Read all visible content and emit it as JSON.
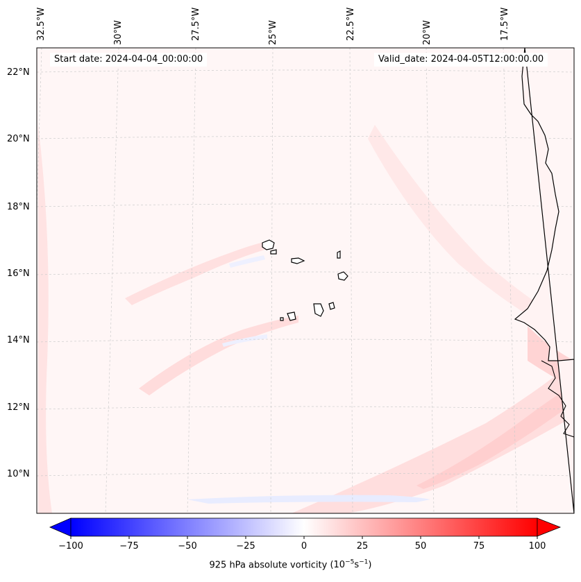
{
  "map": {
    "start_date": "Start date: 2024-04-04_00:00:00",
    "valid_date": "Valid_date: 2024-04-05T12:00:00.00",
    "lon_labels": [
      "32.5°W",
      "30°W",
      "27.5°W",
      "25°W",
      "22.5°W",
      "20°W",
      "17.5°W"
    ],
    "lat_labels": [
      "22°N",
      "20°N",
      "18°N",
      "16°N",
      "14°N",
      "12°N",
      "10°N"
    ],
    "features": [
      "Cabo Verde islands",
      "West African coastline"
    ]
  },
  "colorbar": {
    "title": "925 hPa absolute vorticity",
    "units_prefix": "(10",
    "units_exp1": "−5",
    "units_mid": "s",
    "units_exp2": "−1",
    "units_suffix": ")",
    "min": -100,
    "max": 100,
    "tick_labels": [
      "−100",
      "−75",
      "−50",
      "−25",
      "0",
      "25",
      "50",
      "75",
      "100"
    ],
    "colors": {
      "negative": "#0000ff",
      "zero": "#ffffff",
      "positive": "#ff0000"
    }
  }
}
